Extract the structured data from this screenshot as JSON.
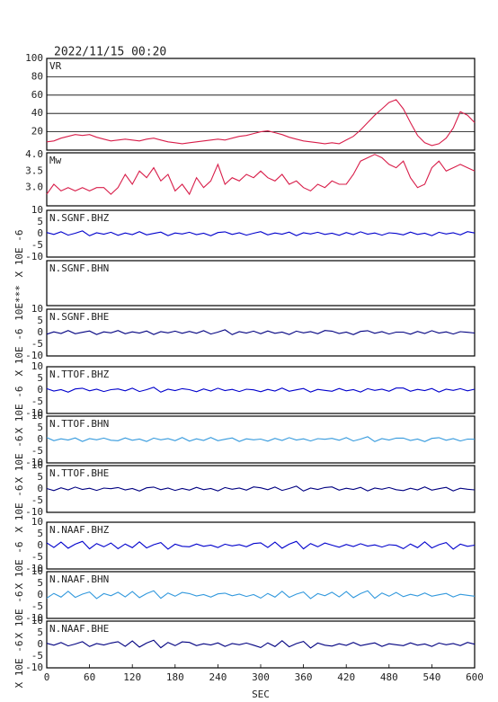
{
  "title": "2022/11/15 00:20",
  "xlabel": "SEC",
  "xlim": [
    0,
    600
  ],
  "xticks": [
    0,
    60,
    120,
    180,
    240,
    300,
    360,
    420,
    480,
    540,
    600
  ],
  "x": [
    0,
    10,
    20,
    30,
    40,
    50,
    60,
    70,
    80,
    90,
    100,
    110,
    120,
    130,
    140,
    150,
    160,
    170,
    180,
    190,
    200,
    210,
    220,
    230,
    240,
    250,
    260,
    270,
    280,
    290,
    300,
    310,
    320,
    330,
    340,
    350,
    360,
    370,
    380,
    390,
    400,
    410,
    420,
    430,
    440,
    450,
    460,
    470,
    480,
    490,
    500,
    510,
    520,
    530,
    540,
    550,
    560,
    570,
    580,
    590,
    600
  ],
  "chart_data": [
    {
      "type": "line",
      "title": "VR",
      "ylim": [
        0,
        100
      ],
      "yticks": [
        20,
        40,
        60,
        80,
        100
      ],
      "grid": true,
      "series": [
        {
          "color": "#d81e4a",
          "values": [
            9,
            10,
            13,
            15,
            17,
            16,
            17,
            14,
            12,
            10,
            11,
            12,
            11,
            10,
            12,
            13,
            11,
            9,
            8,
            7,
            8,
            9,
            10,
            11,
            12,
            11,
            13,
            15,
            16,
            18,
            20,
            21,
            19,
            17,
            14,
            12,
            10,
            9,
            8,
            7,
            8,
            7,
            11,
            15,
            22,
            30,
            38,
            45,
            52,
            55,
            45,
            30,
            16,
            8,
            5,
            7,
            13,
            24,
            42,
            38,
            30
          ]
        }
      ]
    },
    {
      "type": "line",
      "title": "Mw",
      "ylim": [
        2.45,
        4.05
      ],
      "yticks": [
        {
          "value": 3,
          "label": "3.0"
        },
        3.5,
        {
          "value": 4,
          "label": "4.0"
        }
      ],
      "grid": false,
      "series": [
        {
          "color": "#d81e4a",
          "values": [
            2.8,
            3.1,
            2.9,
            3.0,
            2.9,
            3.0,
            2.9,
            3.0,
            3.0,
            2.8,
            3.0,
            3.4,
            3.1,
            3.5,
            3.3,
            3.6,
            3.2,
            3.4,
            2.9,
            3.1,
            2.8,
            3.3,
            3.0,
            3.2,
            3.7,
            3.1,
            3.3,
            3.2,
            3.4,
            3.3,
            3.5,
            3.3,
            3.2,
            3.4,
            3.1,
            3.2,
            3.0,
            2.9,
            3.1,
            3.0,
            3.2,
            3.1,
            3.1,
            3.4,
            3.8,
            3.9,
            4.0,
            3.9,
            3.7,
            3.6,
            3.8,
            3.3,
            3.0,
            3.1,
            3.6,
            3.8,
            3.5,
            3.6,
            3.7,
            3.6,
            3.5
          ]
        }
      ]
    },
    {
      "type": "line",
      "title": "N.SGNF.BHZ",
      "ylabel": "X 10E -6",
      "ylim": [
        -10,
        10
      ],
      "yticks": [
        -10,
        -5,
        0,
        5,
        10
      ],
      "series": [
        {
          "color": "#0000cc",
          "values": [
            0.5,
            -0.3,
            0.8,
            -0.6,
            0.2,
            1.2,
            -0.9,
            0.4,
            -0.2,
            0.6,
            -0.7,
            0.3,
            -0.4,
            0.9,
            -0.5,
            0.1,
            0.7,
            -0.8,
            0.3,
            -0.1,
            0.6,
            -0.4,
            0.2,
            -0.9,
            0.5,
            0.8,
            -0.3,
            0.4,
            -0.6,
            0.2,
            0.9,
            -0.5,
            0.3,
            -0.2,
            0.7,
            -0.8,
            0.4,
            -0.1,
            0.6,
            -0.3,
            0.2,
            -0.7,
            0.5,
            -0.4,
            0.8,
            -0.2,
            0.3,
            -0.6,
            0.4,
            0.1,
            -0.5,
            0.7,
            -0.3,
            0.2,
            -0.8,
            0.6,
            -0.1,
            0.4,
            -0.5,
            0.9,
            0.3
          ]
        }
      ]
    },
    {
      "type": "line",
      "title": "N.SGNF.BHN",
      "ylabel": "10E***",
      "series": []
    },
    {
      "type": "line",
      "title": "N.SGNF.BHE",
      "ylabel": "X 10E -6",
      "ylim": [
        -10,
        10
      ],
      "yticks": [
        -10,
        -5,
        0,
        5,
        10
      ],
      "series": [
        {
          "color": "#000080",
          "values": [
            -0.7,
            0.3,
            -0.4,
            0.9,
            -0.5,
            0.1,
            0.7,
            -0.8,
            0.3,
            -0.1,
            0.9,
            -0.5,
            0.3,
            -0.2,
            0.7,
            -0.8,
            0.4,
            -0.1,
            0.6,
            -0.3,
            0.5,
            -0.3,
            0.8,
            -0.6,
            0.2,
            1.2,
            -0.9,
            0.4,
            -0.2,
            0.6,
            -0.5,
            0.7,
            -0.3,
            0.2,
            -0.8,
            0.6,
            -0.1,
            0.4,
            -0.5,
            0.9,
            0.6,
            -0.4,
            0.2,
            -0.9,
            0.5,
            0.8,
            -0.3,
            0.4,
            -0.6,
            0.2,
            0.2,
            -0.7,
            0.5,
            -0.4,
            0.8,
            -0.2,
            0.3,
            -0.6,
            0.4,
            0.1,
            -0.2
          ]
        }
      ]
    },
    {
      "type": "line",
      "title": "N.TTOF.BHZ",
      "ylabel": "X 10E -6",
      "ylim": [
        -10,
        10
      ],
      "yticks": [
        -10,
        -5,
        0,
        5,
        10
      ],
      "series": [
        {
          "color": "#0000cc",
          "values": [
            0.6,
            -0.4,
            0.2,
            -0.9,
            0.5,
            0.8,
            -0.3,
            0.4,
            -0.6,
            0.2,
            0.5,
            -0.3,
            0.8,
            -0.6,
            0.2,
            1.2,
            -0.9,
            0.4,
            -0.2,
            0.6,
            0.2,
            -0.7,
            0.5,
            -0.4,
            0.8,
            -0.2,
            0.3,
            -0.6,
            0.4,
            0.1,
            -0.7,
            0.3,
            -0.4,
            0.9,
            -0.5,
            0.1,
            0.7,
            -0.8,
            0.3,
            -0.1,
            -0.5,
            0.7,
            -0.3,
            0.2,
            -0.8,
            0.6,
            -0.1,
            0.4,
            -0.5,
            0.9,
            0.9,
            -0.5,
            0.3,
            -0.2,
            0.7,
            -0.8,
            0.4,
            -0.1,
            0.6,
            -0.3,
            0.4
          ]
        }
      ]
    },
    {
      "type": "line",
      "title": "N.TTOF.BHN",
      "ylabel": "X 10E -6",
      "ylim": [
        -10,
        10
      ],
      "yticks": [
        -10,
        -5,
        0,
        5,
        10
      ],
      "series": [
        {
          "color": "#3399dd",
          "values": [
            0.9,
            -0.5,
            0.3,
            -0.2,
            0.7,
            -0.8,
            0.4,
            -0.1,
            0.6,
            -0.3,
            -0.5,
            0.7,
            -0.3,
            0.2,
            -0.8,
            0.6,
            -0.1,
            0.4,
            -0.5,
            0.9,
            -0.7,
            0.3,
            -0.4,
            0.9,
            -0.5,
            0.1,
            0.7,
            -0.8,
            0.3,
            -0.1,
            0.2,
            -0.7,
            0.5,
            -0.4,
            0.8,
            -0.2,
            0.3,
            -0.6,
            0.4,
            0.1,
            0.5,
            -0.3,
            0.8,
            -0.6,
            0.2,
            1.2,
            -0.9,
            0.4,
            -0.2,
            0.6,
            0.6,
            -0.4,
            0.2,
            -0.9,
            0.5,
            0.8,
            -0.3,
            0.4,
            -0.6,
            0.2,
            0.1
          ]
        }
      ]
    },
    {
      "type": "line",
      "title": "N.TTOF.BHE",
      "ylabel": "X 10E -6",
      "ylim": [
        -10,
        10
      ],
      "yticks": [
        -10,
        -5,
        0,
        5,
        10
      ],
      "series": [
        {
          "color": "#000080",
          "values": [
            0.2,
            -0.7,
            0.5,
            -0.4,
            0.8,
            -0.2,
            0.3,
            -0.6,
            0.4,
            0.1,
            0.6,
            -0.4,
            0.2,
            -0.9,
            0.5,
            0.8,
            -0.3,
            0.4,
            -0.6,
            0.2,
            -0.5,
            0.7,
            -0.3,
            0.2,
            -0.8,
            0.6,
            -0.1,
            0.4,
            -0.5,
            0.9,
            0.5,
            -0.3,
            0.8,
            -0.6,
            0.2,
            1.2,
            -0.9,
            0.4,
            -0.2,
            0.6,
            0.9,
            -0.5,
            0.3,
            -0.2,
            0.7,
            -0.8,
            0.4,
            -0.1,
            0.6,
            -0.3,
            -0.7,
            0.3,
            -0.4,
            0.9,
            -0.5,
            0.1,
            0.7,
            -0.8,
            0.3,
            -0.1,
            -0.4
          ]
        }
      ]
    },
    {
      "type": "line",
      "title": "N.NAAF.BHZ",
      "ylabel": "X 10E -6",
      "ylim": [
        -10,
        10
      ],
      "yticks": [
        -10,
        -5,
        0,
        5,
        10
      ],
      "series": [
        {
          "color": "#0000cc",
          "values": [
            1.2,
            -0.8,
            1.5,
            -1.1,
            0.6,
            1.8,
            -1.4,
            0.9,
            -0.5,
            1.1,
            -1.3,
            0.7,
            -0.9,
            1.6,
            -1.0,
            0.4,
            1.3,
            -1.5,
            0.6,
            -0.3,
            -0.5,
            0.7,
            -0.3,
            0.2,
            -0.8,
            0.6,
            -0.1,
            0.4,
            -0.5,
            0.9,
            1.2,
            -0.8,
            1.5,
            -1.1,
            0.6,
            1.8,
            -1.4,
            0.9,
            -0.5,
            1.1,
            0.2,
            -0.7,
            0.5,
            -0.4,
            0.8,
            -0.2,
            0.3,
            -0.6,
            0.4,
            0.1,
            -1.3,
            0.7,
            -0.9,
            1.6,
            -1.0,
            0.4,
            1.3,
            -1.5,
            0.6,
            -0.3,
            0.2
          ]
        }
      ]
    },
    {
      "type": "line",
      "title": "N.NAAF.BHN",
      "ylabel": "X 10E -6",
      "ylim": [
        -10,
        10
      ],
      "yticks": [
        -10,
        -5,
        0,
        5,
        10
      ],
      "series": [
        {
          "color": "#3399dd",
          "values": [
            -1.3,
            0.7,
            -0.9,
            1.6,
            -1.0,
            0.4,
            1.3,
            -1.5,
            0.6,
            -0.3,
            1.2,
            -0.8,
            1.5,
            -1.1,
            0.6,
            1.8,
            -1.4,
            0.9,
            -0.5,
            1.1,
            0.6,
            -0.4,
            0.2,
            -0.9,
            0.5,
            0.8,
            -0.3,
            0.4,
            -0.6,
            0.2,
            -1.3,
            0.7,
            -0.9,
            1.6,
            -1.0,
            0.4,
            1.3,
            -1.5,
            0.6,
            -0.3,
            1.2,
            -0.8,
            1.5,
            -1.1,
            0.6,
            1.8,
            -1.4,
            0.9,
            -0.5,
            1.1,
            -0.7,
            0.3,
            -0.4,
            0.9,
            -0.5,
            0.1,
            0.7,
            -0.8,
            0.3,
            -0.1,
            -0.5
          ]
        }
      ]
    },
    {
      "type": "line",
      "title": "N.NAAF.BHE",
      "ylabel": "X 10E -6",
      "ylim": [
        -10,
        10
      ],
      "yticks": [
        -10,
        -5,
        0,
        5,
        10
      ],
      "series": [
        {
          "color": "#000080",
          "values": [
            0.5,
            -0.3,
            0.8,
            -0.6,
            0.2,
            1.2,
            -0.9,
            0.4,
            -0.2,
            0.6,
            1.2,
            -0.8,
            1.5,
            -1.1,
            0.6,
            1.8,
            -1.4,
            0.9,
            -0.5,
            1.1,
            0.9,
            -0.5,
            0.3,
            -0.2,
            0.7,
            -0.8,
            0.4,
            -0.1,
            0.6,
            -0.3,
            -1.3,
            0.7,
            -0.9,
            1.6,
            -1.0,
            0.4,
            1.3,
            -1.5,
            0.6,
            -0.3,
            -0.7,
            0.3,
            -0.4,
            0.9,
            -0.5,
            0.1,
            0.7,
            -0.8,
            0.3,
            -0.1,
            -0.5,
            0.7,
            -0.3,
            0.2,
            -0.8,
            0.6,
            -0.1,
            0.4,
            -0.5,
            0.9,
            0.1
          ]
        }
      ]
    }
  ]
}
